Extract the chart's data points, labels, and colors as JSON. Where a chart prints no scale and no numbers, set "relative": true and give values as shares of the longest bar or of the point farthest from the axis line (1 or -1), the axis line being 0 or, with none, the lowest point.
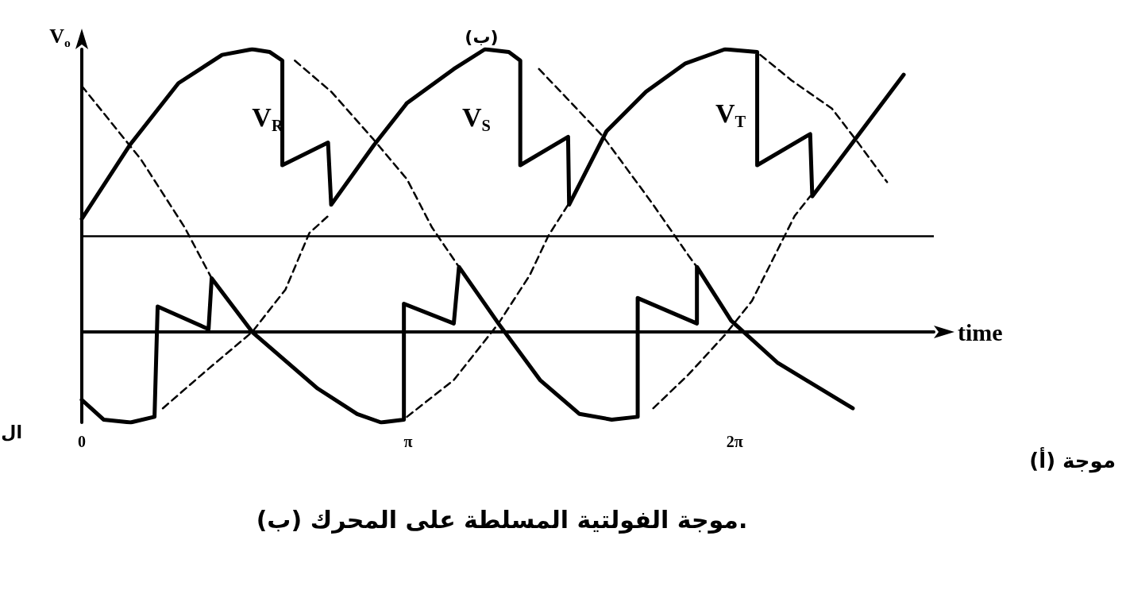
{
  "chart_data": {
    "type": "line",
    "relative": true,
    "xlabel": "time",
    "ylabel": "V$_{o}$",
    "xlim": [
      0,
      8.2
    ],
    "xticks": [
      0,
      {
        "value": 3.1416,
        "label": "π"
      },
      {
        "value": 6.2832,
        "label": "2π"
      }
    ],
    "grid": false,
    "marker": "none",
    "line_style": "solid",
    "ref_lines": [
      {
        "axis": "y",
        "value": 0.34,
        "color": "#000000"
      }
    ],
    "series": [
      {
        "color": "#000000",
        "line_style": "dashed",
        "x": [
          0,
          0.57,
          0.99,
          1.25
        ],
        "values": [
          0.87,
          0.61,
          0.37,
          0.19
        ]
      },
      {
        "color": "#000000",
        "line_style": "dashed",
        "x": [
          0.78,
          1.22,
          1.64,
          1.96,
          2.19,
          2.37
        ],
        "values": [
          -0.27,
          -0.13,
          0.0,
          0.15,
          0.35,
          0.41
        ]
      },
      {
        "color": "#000000",
        "line_style": "dashed",
        "x": [
          2.05,
          2.4,
          2.81,
          3.13,
          3.37,
          3.63
        ],
        "values": [
          0.96,
          0.85,
          0.68,
          0.54,
          0.37,
          0.23
        ]
      },
      {
        "color": "#000000",
        "line_style": "dashed",
        "x": [
          3.13,
          3.58,
          4.01,
          4.31,
          4.49,
          4.68
        ],
        "values": [
          -0.3,
          -0.17,
          0.03,
          0.2,
          0.34,
          0.45
        ]
      },
      {
        "color": "#000000",
        "line_style": "dashed",
        "x": [
          4.4,
          4.66,
          5.02,
          5.48,
          5.84,
          5.92
        ],
        "values": [
          0.93,
          0.83,
          0.69,
          0.46,
          0.27,
          0.23
        ]
      },
      {
        "color": "#000000",
        "line_style": "dashed",
        "x": [
          5.5,
          5.84,
          6.19,
          6.45,
          6.86,
          7.01
        ],
        "values": [
          -0.27,
          -0.15,
          -0.01,
          0.11,
          0.41,
          0.48
        ]
      },
      {
        "color": "#000000",
        "line_style": "dashed",
        "x": [
          6.53,
          6.83,
          7.22,
          7.47,
          7.75
        ],
        "values": [
          0.98,
          0.89,
          0.79,
          0.67,
          0.53
        ]
      },
      {
        "color": "#000000",
        "x": [
          0,
          0.46,
          0.93,
          1.35,
          1.64,
          1.81,
          1.93,
          1.93,
          2.37,
          2.4,
          2.81,
          3.13,
          3.58,
          3.88,
          4.11,
          4.22,
          4.22,
          4.68,
          4.69,
          5.05,
          5.43,
          5.81,
          6.19,
          6.5,
          6.5,
          7.01,
          7.03,
          7.91
        ],
        "values": [
          0.4,
          0.66,
          0.88,
          0.98,
          1.0,
          0.99,
          0.96,
          0.59,
          0.67,
          0.45,
          0.66,
          0.81,
          0.93,
          1.0,
          0.99,
          0.96,
          0.59,
          0.69,
          0.45,
          0.71,
          0.85,
          0.95,
          1.0,
          0.99,
          0.59,
          0.7,
          0.48,
          0.91
        ]
      },
      {
        "color": "#000000",
        "x": [
          0,
          0.21,
          0.47,
          0.7,
          0.73,
          1.22,
          1.25,
          1.64,
          2.27,
          2.65,
          2.88,
          3.1,
          3.1,
          3.58,
          3.63,
          4.01,
          4.41,
          4.79,
          5.1,
          5.35,
          5.35,
          5.92,
          5.92,
          6.25,
          6.7,
          7.42
        ],
        "values": [
          -0.24,
          -0.31,
          -0.32,
          -0.3,
          0.09,
          0.01,
          0.19,
          0.0,
          -0.2,
          -0.29,
          -0.32,
          -0.31,
          0.1,
          0.03,
          0.23,
          0.03,
          -0.17,
          -0.29,
          -0.31,
          -0.3,
          0.12,
          0.03,
          0.23,
          0.04,
          -0.11,
          -0.27
        ]
      }
    ],
    "annotations": [
      "V$_{R}$",
      "V$_{S}$",
      "V$_{T}$",
      {
        "text": "(ب)",
        "x": 3.88,
        "y": 1.0
      },
      "(أ) موجة",
      "(ب) موجة الفولتية المسلطة على المحرك.",
      "ال"
    ]
  }
}
